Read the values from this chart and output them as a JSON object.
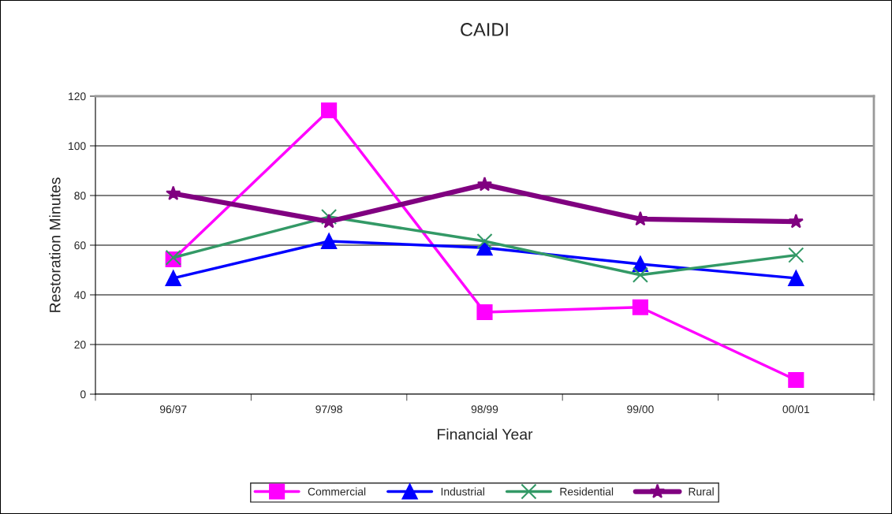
{
  "chart_data": {
    "type": "line",
    "title": "CAIDI",
    "xlabel": "Financial Year",
    "ylabel": "Restoration Minutes",
    "categories": [
      "96/97",
      "97/98",
      "98/99",
      "99/00",
      "00/01"
    ],
    "series": [
      {
        "name": "Commercial",
        "color": "#ff00ff",
        "marker": "square",
        "values": [
          54.3,
          114.3,
          33,
          35,
          5.7
        ]
      },
      {
        "name": "Industrial",
        "color": "#0000ff",
        "marker": "triangle",
        "values": [
          46.7,
          61.6,
          59,
          52.4,
          46.7
        ]
      },
      {
        "name": "Residential",
        "color": "#339966",
        "marker": "cross",
        "values": [
          55,
          71.4,
          61.6,
          48,
          56
        ]
      },
      {
        "name": "Rural",
        "color": "#800080",
        "marker": "star",
        "values": [
          80.8,
          69.5,
          84.4,
          70.5,
          69.5
        ]
      }
    ],
    "ylim": [
      0,
      120
    ],
    "yticks": [
      0,
      20,
      40,
      60,
      80,
      100,
      120
    ],
    "grid": "y",
    "legend": "bottom"
  }
}
